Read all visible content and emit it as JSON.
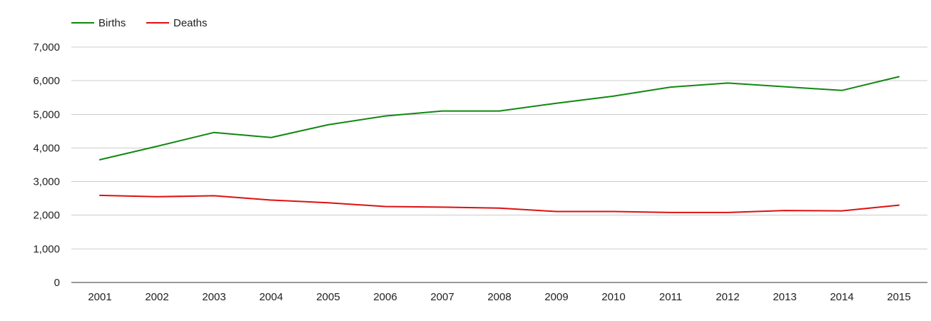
{
  "chart_data": {
    "type": "line",
    "x": [
      "2001",
      "2002",
      "2003",
      "2004",
      "2005",
      "2006",
      "2007",
      "2008",
      "2009",
      "2010",
      "2011",
      "2012",
      "2013",
      "2014",
      "2015"
    ],
    "series": [
      {
        "name": "Births",
        "color": "#118811",
        "values": [
          3650,
          4050,
          4460,
          4310,
          4690,
          4950,
          5100,
          5100,
          5330,
          5540,
          5810,
          5930,
          5820,
          5710,
          6120
        ]
      },
      {
        "name": "Deaths",
        "color": "#dd1111",
        "values": [
          2590,
          2550,
          2580,
          2450,
          2370,
          2260,
          2240,
          2210,
          2110,
          2110,
          2080,
          2080,
          2140,
          2130,
          2300
        ]
      }
    ],
    "ylim": [
      0,
      7000
    ],
    "yticks": [
      0,
      1000,
      2000,
      3000,
      4000,
      5000,
      6000,
      7000
    ],
    "ytick_labels": [
      "0",
      "1,000",
      "2,000",
      "3,000",
      "4,000",
      "5,000",
      "6,000",
      "7,000"
    ],
    "grid": true,
    "legend_position": "top-left"
  }
}
